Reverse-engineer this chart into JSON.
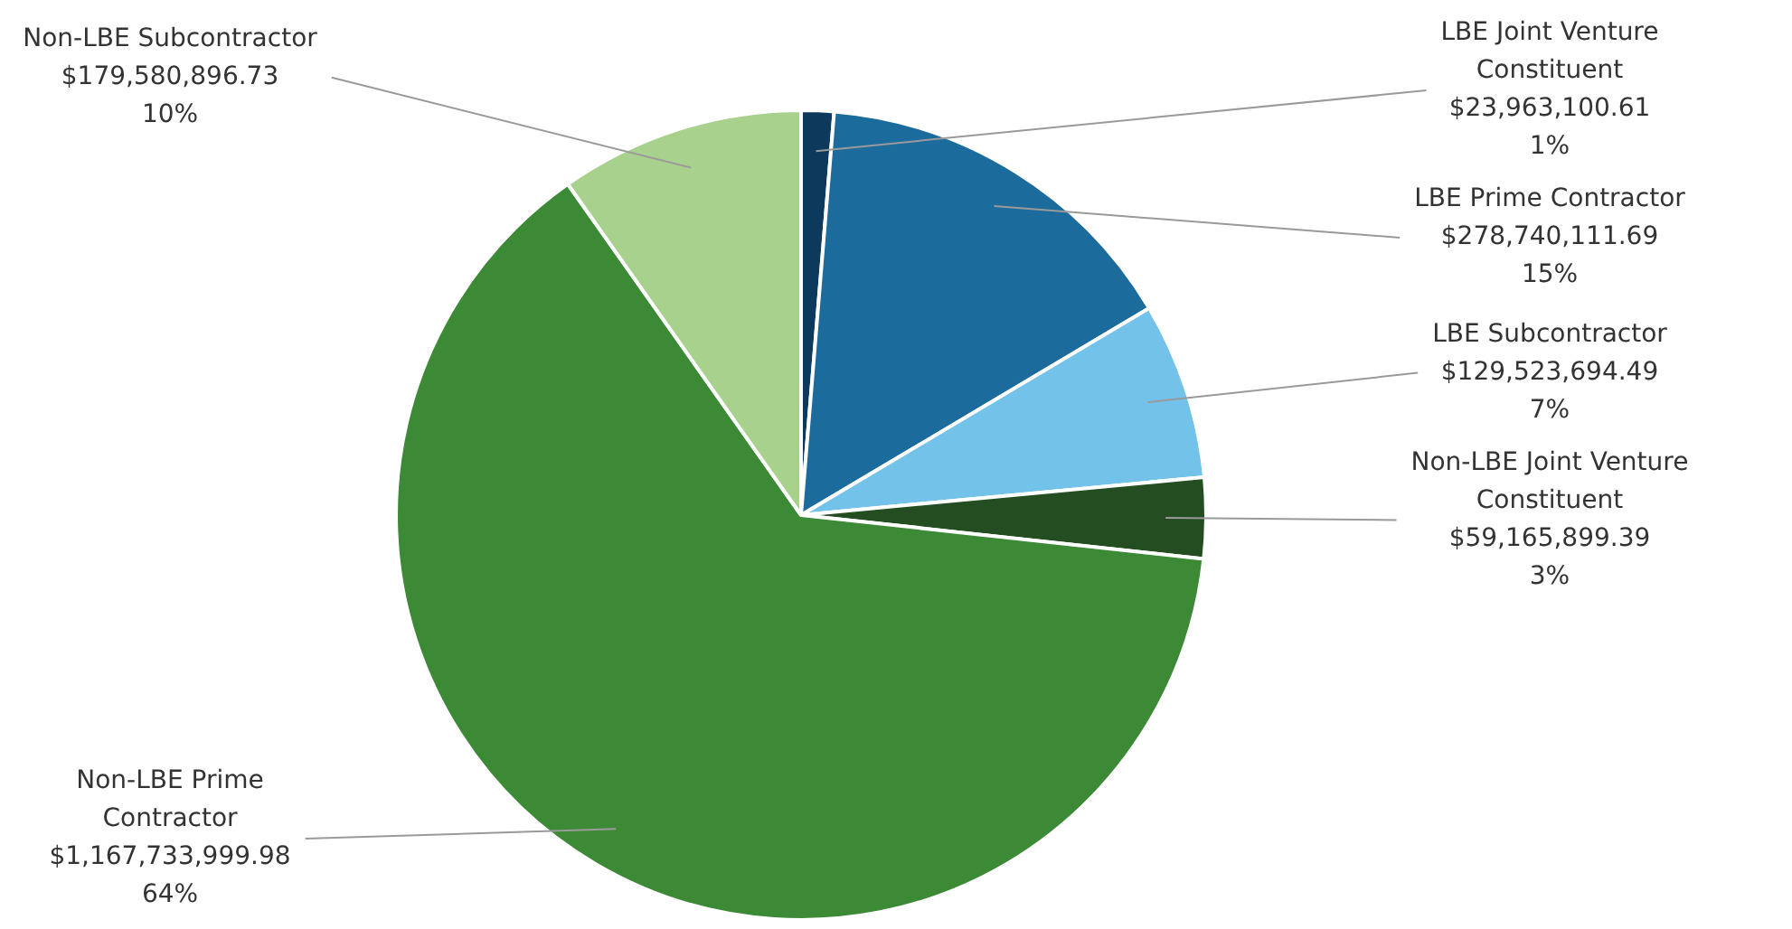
{
  "chart_data": {
    "type": "pie",
    "categories": [
      "LBE Joint Venture Constituent",
      "LBE Prime Contractor",
      "LBE Subcontractor",
      "Non-LBE Joint Venture Constituent",
      "Non-LBE Prime Contractor",
      "Non-LBE Subcontractor"
    ],
    "values": [
      23963100.61,
      278740111.69,
      129523694.49,
      59165899.39,
      1167733999.98,
      179580896.73
    ],
    "colors": [
      "#0d3a5c",
      "#1b6b9c",
      "#72c2ea",
      "#244d22",
      "#3c8a36",
      "#a9d18e"
    ],
    "value_labels": [
      "$23,963,100.61\n1%",
      "$278,740,111.69\n15%",
      "$129,523,694.49\n7%",
      "$59,165,899.39\n3%",
      "$1,167,733,999.98\n64%",
      "$179,580,896.73\n10%"
    ],
    "legend": false
  }
}
